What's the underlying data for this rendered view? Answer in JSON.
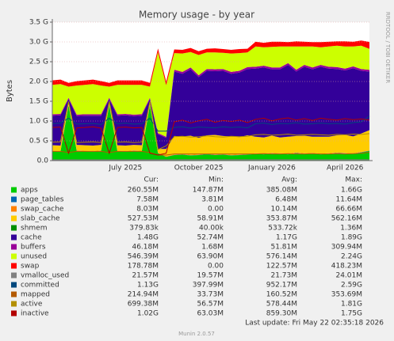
{
  "chart_data": {
    "type": "stacked-area",
    "title": "Memory usage - by year",
    "y_label": "Bytes",
    "side_label": "RRDTOOL / TOBI OETIKER",
    "categories": [
      null,
      null,
      null,
      null,
      null,
      null,
      null,
      null,
      null,
      "July 2025",
      null,
      null,
      null,
      null,
      null,
      null,
      null,
      null,
      "October 2025",
      null,
      null,
      null,
      null,
      null,
      null,
      null,
      null,
      "January 2026",
      null,
      null,
      null,
      null,
      null,
      null,
      null,
      null,
      "April 2026",
      null,
      null,
      null
    ],
    "ylim": [
      0,
      3758096384
    ],
    "yticks": [
      {
        "value": 0,
        "label": "0.0"
      },
      {
        "value": 536870912,
        "label": "0.5 G"
      },
      {
        "value": 1073741824,
        "label": "1.0 G"
      },
      {
        "value": 1610612736,
        "label": "1.5 G"
      },
      {
        "value": 2147483648,
        "label": "2.0 G"
      },
      {
        "value": 2684354560,
        "label": "2.5 G"
      },
      {
        "value": 3221225472,
        "label": "3.0 G"
      },
      {
        "value": 3758096384,
        "label": "3.5 G"
      }
    ],
    "grid": true,
    "legend_headers": [
      "Cur:",
      "Min:",
      "Avg:",
      "Max:"
    ],
    "series": [
      {
        "name": "apps",
        "color": "#00cc00",
        "stack": true,
        "cur": "260.55M",
        "min": "147.87M",
        "avg": "385.08M",
        "max": "1.66G",
        "values": [
          250000000.0,
          240000000.0,
          1500000000.0,
          260000000.0,
          250000000.0,
          240000000.0,
          260000000.0,
          1500000000.0,
          250000000.0,
          240000000.0,
          260000000.0,
          250000000.0,
          1500000000.0,
          200000000.0,
          100000000.0,
          150000000.0,
          160000000.0,
          140000000.0,
          150000000.0,
          170000000.0,
          150000000.0,
          160000000.0,
          140000000.0,
          150000000.0,
          160000000.0,
          180000000.0,
          170000000.0,
          190000000.0,
          180000000.0,
          170000000.0,
          200000000.0,
          180000000.0,
          190000000.0,
          170000000.0,
          180000000.0,
          200000000.0,
          190000000.0,
          180000000.0,
          220000000.0,
          260000000.0
        ]
      },
      {
        "name": "page_tables",
        "color": "#0066b3",
        "stack": true,
        "cur": "7.58M",
        "min": "3.81M",
        "avg": "6.48M",
        "max": "11.64M",
        "values": [
          7000000.0,
          7000000.0,
          7000000.0,
          7000000.0,
          7000000.0,
          7000000.0,
          7000000.0,
          7000000.0,
          7000000.0,
          7000000.0,
          7000000.0,
          7000000.0,
          7000000.0,
          5000000.0,
          5000000.0,
          7000000.0,
          7000000.0,
          7000000.0,
          7000000.0,
          7000000.0,
          7000000.0,
          7000000.0,
          7000000.0,
          7000000.0,
          7000000.0,
          7000000.0,
          7000000.0,
          7000000.0,
          7000000.0,
          7000000.0,
          7000000.0,
          7000000.0,
          7000000.0,
          7000000.0,
          7000000.0,
          7000000.0,
          7000000.0,
          7000000.0,
          7000000.0,
          8000000.0
        ]
      },
      {
        "name": "swap_cache",
        "color": "#ff8000",
        "stack": true,
        "cur": "8.03M",
        "min": "0.00",
        "avg": "10.14M",
        "max": "66.66M",
        "values": [
          10000000.0,
          10000000.0,
          10000000.0,
          10000000.0,
          10000000.0,
          10000000.0,
          10000000.0,
          10000000.0,
          10000000.0,
          10000000.0,
          10000000.0,
          10000000.0,
          10000000.0,
          10000000.0,
          10000000.0,
          10000000.0,
          10000000.0,
          10000000.0,
          10000000.0,
          10000000.0,
          10000000.0,
          10000000.0,
          10000000.0,
          10000000.0,
          10000000.0,
          10000000.0,
          10000000.0,
          10000000.0,
          10000000.0,
          10000000.0,
          10000000.0,
          10000000.0,
          10000000.0,
          10000000.0,
          10000000.0,
          10000000.0,
          10000000.0,
          10000000.0,
          10000000.0,
          8000000.0
        ]
      },
      {
        "name": "slab_cache",
        "color": "#ffcc00",
        "stack": true,
        "cur": "527.53M",
        "min": "58.91M",
        "avg": "353.87M",
        "max": "562.16M",
        "values": [
          150000000.0,
          150000000.0,
          50000000.0,
          150000000.0,
          150000000.0,
          150000000.0,
          150000000.0,
          50000000.0,
          150000000.0,
          150000000.0,
          150000000.0,
          150000000.0,
          50000000.0,
          100000000.0,
          200000000.0,
          500000000.0,
          480000000.0,
          520000000.0,
          450000000.0,
          500000000.0,
          530000000.0,
          490000000.0,
          500000000.0,
          470000000.0,
          510000000.0,
          450000000.0,
          440000000.0,
          470000000.0,
          430000000.0,
          460000000.0,
          450000000.0,
          480000000.0,
          440000000.0,
          460000000.0,
          450000000.0,
          470000000.0,
          490000000.0,
          460000000.0,
          500000000.0,
          550000000.0
        ]
      },
      {
        "name": "shmem",
        "color": "#008f00",
        "stack": true,
        "cur": "379.83k",
        "min": "40.00k",
        "avg": "533.72k",
        "max": "1.36M",
        "values": [
          1000000.0,
          1000000.0,
          1000000.0,
          1000000.0,
          1000000.0,
          1000000.0,
          1000000.0,
          1000000.0,
          1000000.0,
          1000000.0,
          1000000.0,
          1000000.0,
          1000000.0,
          1000000.0,
          1000000.0,
          500000.0,
          500000.0,
          500000.0,
          500000.0,
          500000.0,
          500000.0,
          500000.0,
          500000.0,
          500000.0,
          500000.0,
          500000.0,
          500000.0,
          500000.0,
          500000.0,
          500000.0,
          500000.0,
          500000.0,
          500000.0,
          500000.0,
          500000.0,
          500000.0,
          500000.0,
          500000.0,
          500000.0,
          400000.0
        ]
      },
      {
        "name": "cache",
        "color": "#330099",
        "stack": true,
        "cur": "1.48G",
        "min": "52.74M",
        "avg": "1.17G",
        "max": "1.89G",
        "values": [
          800000000.0,
          820000000.0,
          100000000.0,
          780000000.0,
          800000000.0,
          810000000.0,
          790000000.0,
          100000000.0,
          800000000.0,
          820000000.0,
          780000000.0,
          800000000.0,
          100000000.0,
          400000000.0,
          300000000.0,
          1750000000.0,
          1700000000.0,
          1800000000.0,
          1650000000.0,
          1750000000.0,
          1730000000.0,
          1770000000.0,
          1700000000.0,
          1750000000.0,
          1800000000.0,
          1850000000.0,
          1900000000.0,
          1800000000.0,
          1850000000.0,
          1950000000.0,
          1750000000.0,
          1870000000.0,
          1830000000.0,
          1900000000.0,
          1850000000.0,
          1800000000.0,
          1750000000.0,
          1850000000.0,
          1700000000.0,
          1590000000.0
        ]
      },
      {
        "name": "buffers",
        "color": "#990099",
        "stack": true,
        "cur": "46.18M",
        "min": "1.68M",
        "avg": "51.81M",
        "max": "309.94M",
        "values": [
          40000000.0,
          40000000.0,
          40000000.0,
          40000000.0,
          40000000.0,
          40000000.0,
          40000000.0,
          40000000.0,
          40000000.0,
          40000000.0,
          40000000.0,
          40000000.0,
          40000000.0,
          30000000.0,
          30000000.0,
          50000000.0,
          50000000.0,
          50000000.0,
          50000000.0,
          50000000.0,
          50000000.0,
          50000000.0,
          50000000.0,
          50000000.0,
          50000000.0,
          50000000.0,
          50000000.0,
          50000000.0,
          50000000.0,
          50000000.0,
          50000000.0,
          50000000.0,
          50000000.0,
          50000000.0,
          50000000.0,
          50000000.0,
          50000000.0,
          50000000.0,
          50000000.0,
          48000000.0
        ]
      },
      {
        "name": "unused",
        "color": "#ccff00",
        "stack": true,
        "cur": "546.39M",
        "min": "63.90M",
        "avg": "576.14M",
        "max": "2.24G",
        "values": [
          800000000.0,
          810000000.0,
          300000000.0,
          790000000.0,
          800000000.0,
          820000000.0,
          780000000.0,
          300000000.0,
          800000000.0,
          790000000.0,
          810000000.0,
          800000000.0,
          300000000.0,
          2200000000.0,
          1400000000.0,
          450000000.0,
          500000000.0,
          420000000.0,
          550000000.0,
          450000000.0,
          460000000.0,
          440000000.0,
          500000000.0,
          480000000.0,
          400000000.0,
          550000000.0,
          500000000.0,
          560000000.0,
          570000000.0,
          450000000.0,
          630000000.0,
          500000000.0,
          570000000.0,
          480000000.0,
          550000000.0,
          580000000.0,
          600000000.0,
          540000000.0,
          630000000.0,
          570000000.0
        ]
      },
      {
        "name": "swap",
        "color": "#ff0000",
        "stack": true,
        "cur": "178.78M",
        "min": "0.00",
        "avg": "122.57M",
        "max": "418.23M",
        "values": [
          120000000.0,
          120000000.0,
          100000000.0,
          120000000.0,
          120000000.0,
          120000000.0,
          120000000.0,
          100000000.0,
          120000000.0,
          120000000.0,
          120000000.0,
          120000000.0,
          100000000.0,
          100000000.0,
          100000000.0,
          100000000.0,
          100000000.0,
          110000000.0,
          100000000.0,
          100000000.0,
          110000000.0,
          100000000.0,
          100000000.0,
          110000000.0,
          100000000.0,
          130000000.0,
          120000000.0,
          140000000.0,
          130000000.0,
          120000000.0,
          140000000.0,
          130000000.0,
          120000000.0,
          140000000.0,
          130000000.0,
          120000000.0,
          140000000.0,
          130000000.0,
          140000000.0,
          187000000.0
        ]
      },
      {
        "name": "vmalloc_used",
        "color": "#808080",
        "stack": false,
        "cur": "21.57M",
        "min": "19.57M",
        "avg": "21.73M",
        "max": "24.01M",
        "values": [
          22000000.0,
          22000000.0,
          22000000.0,
          22000000.0,
          22000000.0,
          22000000.0,
          22000000.0,
          22000000.0,
          22000000.0,
          22000000.0,
          22000000.0,
          22000000.0,
          22000000.0,
          21000000.0,
          21000000.0,
          23000000.0,
          23000000.0,
          23000000.0,
          23000000.0,
          23000000.0,
          23000000.0,
          23000000.0,
          23000000.0,
          23000000.0,
          23000000.0,
          23000000.0,
          23000000.0,
          23000000.0,
          23000000.0,
          23000000.0,
          23000000.0,
          23000000.0,
          23000000.0,
          23000000.0,
          23000000.0,
          23000000.0,
          23000000.0,
          23000000.0,
          23000000.0,
          23000000.0
        ]
      },
      {
        "name": "committed",
        "color": "#00487d",
        "stack": false,
        "cur": "1.13G",
        "min": "397.99M",
        "avg": "952.17M",
        "max": "2.59G",
        "values": [
          1000000000.0,
          1020000000.0,
          1150000000.0,
          990000000.0,
          1000000000.0,
          1010000000.0,
          980000000.0,
          1150000000.0,
          1000000000.0,
          1020000000.0,
          990000000.0,
          1000000000.0,
          1150000000.0,
          800000000.0,
          800000000.0,
          900000000.0,
          920000000.0,
          880000000.0,
          910000000.0,
          900000000.0,
          890000000.0,
          920000000.0,
          900000000.0,
          910000000.0,
          890000000.0,
          1000000000.0,
          1020000000.0,
          980000000.0,
          1010000000.0,
          1000000000.0,
          1030000000.0,
          990000000.0,
          1000000000.0,
          1020000000.0,
          1000000000.0,
          1010000000.0,
          990000000.0,
          1030000000.0,
          1050000000.0,
          1210000000.0
        ]
      },
      {
        "name": "mapped",
        "color": "#b35a00",
        "stack": false,
        "cur": "214.94M",
        "min": "33.73M",
        "avg": "160.52M",
        "max": "353.69M",
        "values": [
          250000000.0,
          250000000.0,
          220000000.0,
          250000000.0,
          250000000.0,
          250000000.0,
          250000000.0,
          220000000.0,
          250000000.0,
          250000000.0,
          250000000.0,
          250000000.0,
          220000000.0,
          150000000.0,
          150000000.0,
          180000000.0,
          180000000.0,
          180000000.0,
          180000000.0,
          180000000.0,
          180000000.0,
          180000000.0,
          180000000.0,
          180000000.0,
          180000000.0,
          180000000.0,
          190000000.0,
          180000000.0,
          180000000.0,
          190000000.0,
          180000000.0,
          180000000.0,
          190000000.0,
          180000000.0,
          180000000.0,
          190000000.0,
          180000000.0,
          190000000.0,
          200000000.0,
          225000000.0
        ]
      },
      {
        "name": "active",
        "color": "#b38f00",
        "stack": false,
        "cur": "699.38M",
        "min": "56.57M",
        "avg": "578.44M",
        "max": "1.81G",
        "values": [
          500000000.0,
          510000000.0,
          1600000000.0,
          490000000.0,
          500000000.0,
          510000000.0,
          490000000.0,
          1600000000.0,
          500000000.0,
          510000000.0,
          490000000.0,
          500000000.0,
          1600000000.0,
          300000000.0,
          400000000.0,
          650000000.0,
          660000000.0,
          640000000.0,
          650000000.0,
          670000000.0,
          650000000.0,
          640000000.0,
          660000000.0,
          650000000.0,
          660000000.0,
          700000000.0,
          710000000.0,
          690000000.0,
          700000000.0,
          720000000.0,
          690000000.0,
          700000000.0,
          710000000.0,
          700000000.0,
          690000000.0,
          710000000.0,
          700000000.0,
          720000000.0,
          710000000.0,
          733000000.0
        ]
      },
      {
        "name": "inactive",
        "color": "#b30000",
        "stack": false,
        "cur": "1.02G",
        "min": "63.03M",
        "avg": "859.30M",
        "max": "1.75G",
        "values": [
          900000000.0,
          910000000.0,
          200000000.0,
          890000000.0,
          900000000.0,
          920000000.0,
          880000000.0,
          200000000.0,
          900000000.0,
          910000000.0,
          890000000.0,
          900000000.0,
          200000000.0,
          150000000.0,
          200000000.0,
          1050000000.0,
          1100000000.0,
          1020000000.0,
          1080000000.0,
          1120000000.0,
          1040000000.0,
          1090000000.0,
          1060000000.0,
          1100000000.0,
          1030000000.0,
          1120000000.0,
          1150000000.0,
          1080000000.0,
          1130000000.0,
          1160000000.0,
          1100000000.0,
          1140000000.0,
          1090000000.0,
          1150000000.0,
          1120000000.0,
          1100000000.0,
          1140000000.0,
          1110000000.0,
          1130000000.0,
          1100000000.0
        ]
      }
    ],
    "last_update": "Last update: Fri May 22 02:35:18 2026",
    "footer": "Munin 2.0.57"
  }
}
